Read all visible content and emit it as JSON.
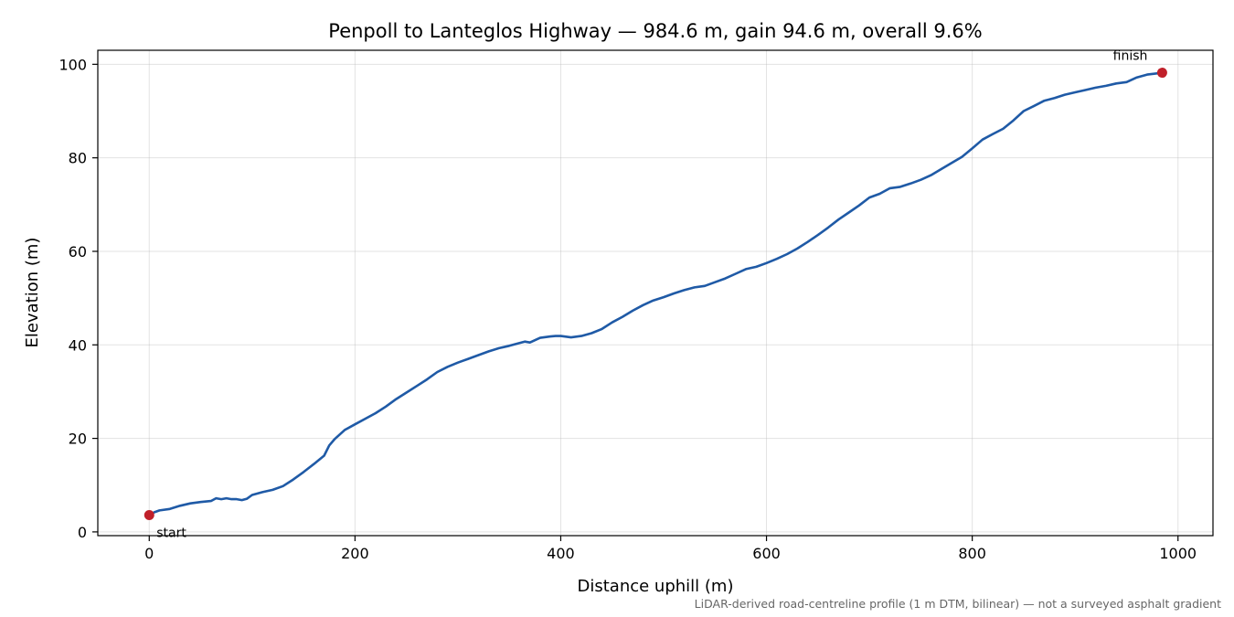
{
  "chart_data": {
    "type": "line",
    "title": "Penpoll to Lanteglos Highway — 984.6 m, gain 94.6 m, overall 9.6%",
    "xlabel": "Distance uphill (m)",
    "ylabel": "Elevation (m)",
    "xlim": [
      -50,
      1034
    ],
    "ylim": [
      -0.8,
      103
    ],
    "xticks": [
      0,
      200,
      400,
      600,
      800,
      1000
    ],
    "yticks": [
      0,
      20,
      40,
      60,
      80,
      100
    ],
    "grid": true,
    "legend": "none",
    "footnote": "LiDAR-derived road-centreline profile (1 m DTM, bilinear) — not a surveyed asphalt gradient",
    "colors": {
      "line": "#1f5aa6",
      "markers": "#c0202a"
    },
    "series": [
      {
        "x": [
          0,
          5,
          10,
          20,
          30,
          40,
          50,
          60,
          65,
          70,
          75,
          80,
          85,
          90,
          95,
          100,
          110,
          120,
          130,
          140,
          150,
          160,
          170,
          175,
          180,
          190,
          200,
          210,
          220,
          230,
          240,
          250,
          260,
          270,
          280,
          290,
          300,
          310,
          320,
          330,
          340,
          350,
          360,
          365,
          370,
          380,
          390,
          395,
          400,
          410,
          420,
          430,
          440,
          450,
          460,
          470,
          480,
          490,
          500,
          510,
          520,
          530,
          540,
          550,
          560,
          570,
          580,
          590,
          600,
          610,
          620,
          630,
          640,
          650,
          660,
          670,
          680,
          690,
          700,
          710,
          720,
          730,
          740,
          750,
          760,
          770,
          780,
          790,
          800,
          810,
          820,
          830,
          840,
          850,
          860,
          870,
          880,
          890,
          900,
          910,
          920,
          930,
          940,
          950,
          960,
          970,
          984.6
        ],
        "y": [
          3.6,
          4.2,
          4.6,
          4.9,
          5.6,
          6.1,
          6.4,
          6.6,
          7.2,
          7.0,
          7.2,
          7.0,
          7.0,
          6.8,
          7.1,
          7.9,
          8.5,
          9.0,
          9.8,
          11.2,
          12.8,
          14.5,
          16.3,
          18.5,
          19.8,
          21.8,
          23.0,
          24.2,
          25.4,
          26.8,
          28.4,
          29.8,
          31.2,
          32.6,
          34.2,
          35.3,
          36.2,
          37.0,
          37.8,
          38.6,
          39.3,
          39.8,
          40.4,
          40.7,
          40.5,
          41.5,
          41.8,
          41.9,
          41.9,
          41.6,
          41.9,
          42.5,
          43.4,
          44.8,
          46.0,
          47.3,
          48.5,
          49.5,
          50.2,
          51.0,
          51.7,
          52.3,
          52.6,
          53.4,
          54.2,
          55.2,
          56.2,
          56.7,
          57.5,
          58.4,
          59.4,
          60.6,
          62.0,
          63.5,
          65.1,
          66.8,
          68.3,
          69.8,
          71.5,
          72.3,
          73.5,
          73.8,
          74.5,
          75.3,
          76.3,
          77.6,
          78.9,
          80.2,
          82.0,
          83.9,
          85.1,
          86.2,
          88.0,
          90.0,
          91.1,
          92.2,
          92.8,
          93.5,
          94.0,
          94.5,
          95.0,
          95.4,
          95.9,
          96.2,
          97.2,
          97.8,
          98.2
        ]
      }
    ],
    "annotations": [
      {
        "label": "start",
        "x": 0,
        "y": 3.6
      },
      {
        "label": "finish",
        "x": 984.6,
        "y": 98.2
      }
    ]
  }
}
